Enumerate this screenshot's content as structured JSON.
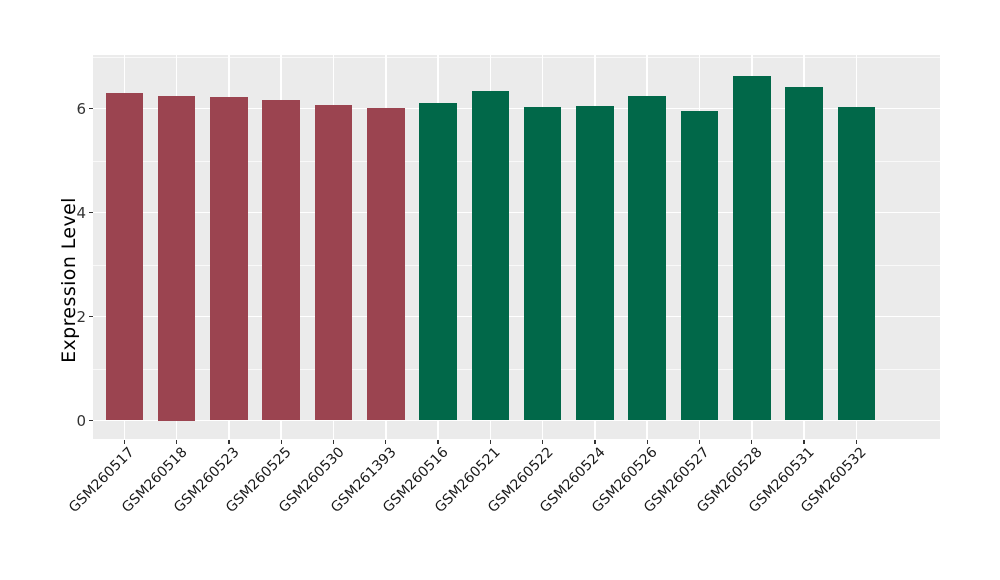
{
  "chart_data": {
    "type": "bar",
    "title": "",
    "xlabel": "",
    "ylabel": "Expression Level",
    "categories": [
      "GSM260517",
      "GSM260518",
      "GSM260523",
      "GSM260525",
      "GSM260530",
      "GSM261393",
      "GSM260516",
      "GSM260521",
      "GSM260522",
      "GSM260524",
      "GSM260526",
      "GSM260527",
      "GSM260528",
      "GSM260531",
      "GSM260532"
    ],
    "values": [
      6.3,
      6.25,
      6.23,
      6.17,
      6.07,
      6.01,
      6.11,
      6.33,
      6.02,
      6.04,
      6.24,
      5.95,
      6.62,
      6.41,
      6.02
    ],
    "colors": [
      "#9B4450",
      "#9B4450",
      "#9B4450",
      "#9B4450",
      "#9B4450",
      "#9B4450",
      "#016849",
      "#016849",
      "#016849",
      "#016849",
      "#016849",
      "#016849",
      "#016849",
      "#016849",
      "#016849"
    ],
    "group_colors": {
      "left_group_maroon": "#9B4450",
      "right_group_green": "#016849"
    },
    "group_sizes": {
      "left_group_maroon": 6,
      "right_group_green": 9
    },
    "ytick_labels": [
      "0",
      "2",
      "4",
      "6"
    ],
    "yticks": [
      0,
      2,
      4,
      6
    ],
    "minor_yticks": [
      1,
      3,
      5,
      7
    ],
    "ylim": [
      -0.36,
      7.03
    ],
    "grid": "on",
    "legend": "none",
    "panel_background": "#EBEBEB",
    "gridline_color": "#FFFFFF",
    "bar_width_fraction": 0.72,
    "x_label_rotation_deg": 45
  }
}
